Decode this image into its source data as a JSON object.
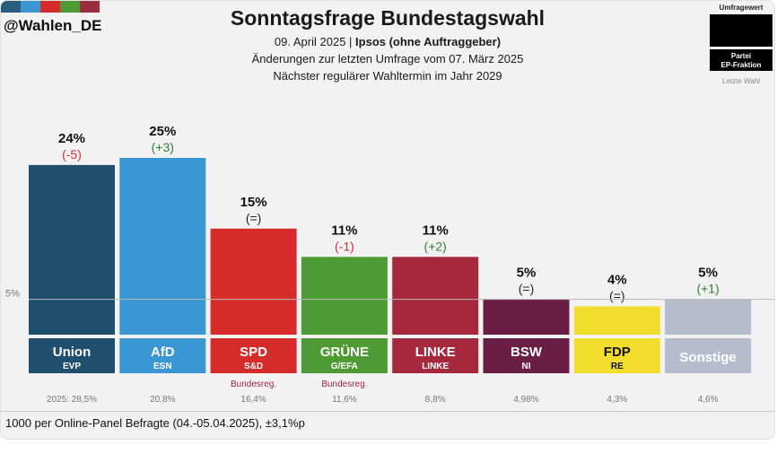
{
  "header": {
    "handle": "@Wahlen_DE",
    "title": "Sonntagsfrage Bundestagswahl",
    "date_line": "09. April 2025 | Ipsos (ohne Auftraggeber)",
    "change_line": "Änderungen zur letzten Umfrage vom 07. März 2025",
    "next_line": "Nächster regulärer Wahltermin im Jahr 2029",
    "logo_colors": [
      "#2a5d7c",
      "#3b97d3",
      "#d62b2b",
      "#4e9b35",
      "#9b2d3e"
    ]
  },
  "legend": {
    "poll_label": "Umfragewert",
    "party_label": "Partei",
    "ep_label": "EP-Fraktion",
    "last_label": "Letzte Wahl"
  },
  "chart_data": {
    "type": "bar",
    "threshold_label": "5%",
    "threshold": 5,
    "ylim": [
      0,
      25
    ],
    "bars": [
      {
        "party": "Union",
        "group": "EVP",
        "value": 24,
        "value_label": "24%",
        "change": "(-5)",
        "change_color": "#d62b2b",
        "color": "#1f4e6e",
        "note": "",
        "last": "2025: 28,5%"
      },
      {
        "party": "AfD",
        "group": "ESN",
        "value": 25,
        "value_label": "25%",
        "change": "(+3)",
        "change_color": "#2e7d32",
        "color": "#3b97d3",
        "note": "",
        "last": "20,8%"
      },
      {
        "party": "SPD",
        "group": "S&D",
        "value": 15,
        "value_label": "15%",
        "change": "(=)",
        "change_color": "#222222",
        "color": "#d62b2b",
        "note": "Bundesreg.",
        "last": "16,4%"
      },
      {
        "party": "GRÜNE",
        "group": "G/EFA",
        "value": 11,
        "value_label": "11%",
        "change": "(-1)",
        "change_color": "#d62b2b",
        "color": "#4e9b35",
        "note": "Bundesreg.",
        "last": "11,6%"
      },
      {
        "party": "LINKE",
        "group": "LINKE",
        "value": 11,
        "value_label": "11%",
        "change": "(+2)",
        "change_color": "#2e7d32",
        "color": "#a5283d",
        "note": "",
        "last": "8,8%"
      },
      {
        "party": "BSW",
        "group": "NI",
        "value": 5,
        "value_label": "5%",
        "change": "(=)",
        "change_color": "#222222",
        "color": "#6b1e45",
        "note": "",
        "last": "4,98%"
      },
      {
        "party": "FDP",
        "group": "RE",
        "value": 4,
        "value_label": "4%",
        "change": "(=)",
        "change_color": "#222222",
        "color": "#f3dd2c",
        "note": "",
        "last": "4,3%"
      },
      {
        "party": "Sonstige",
        "group": "",
        "value": 5,
        "value_label": "5%",
        "change": "(+1)",
        "change_color": "#2e7d32",
        "color": "#b5bccb",
        "note": "",
        "last": "4,6%"
      }
    ]
  },
  "footer": {
    "methodology": "1000 per Online-Panel Befragte (04.-05.04.2025), ±3,1%p"
  }
}
